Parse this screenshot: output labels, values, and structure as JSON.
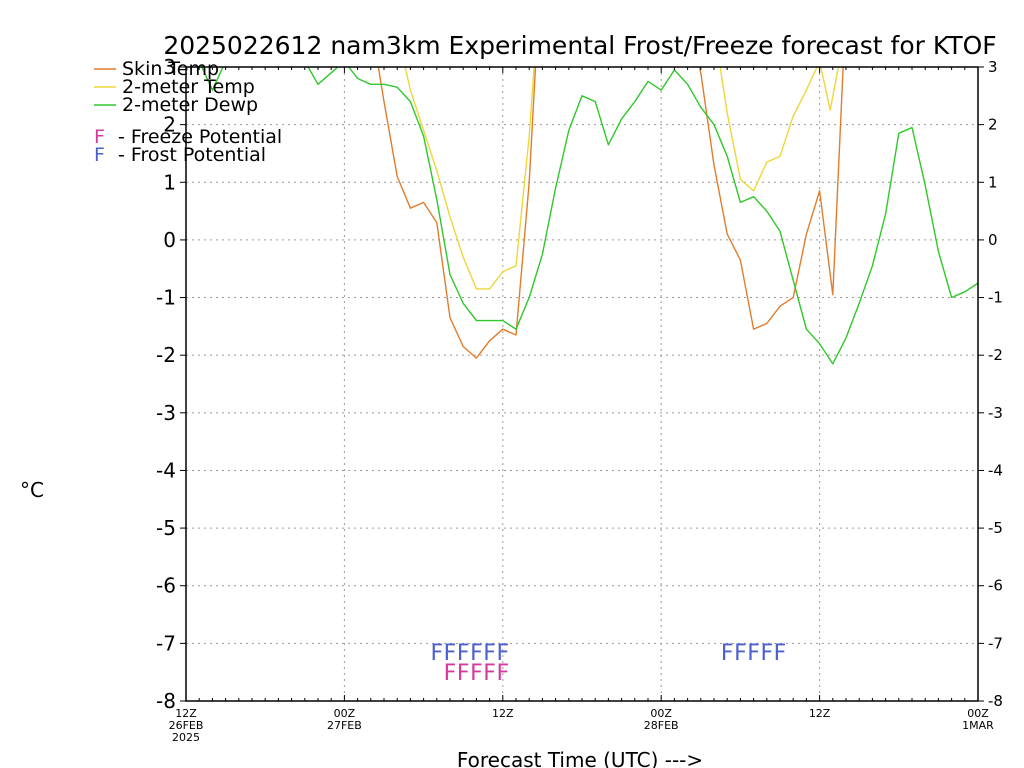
{
  "chart_data": {
    "type": "line",
    "title": "2025022612 nam3km Experimental Frost/Freeze forecast for KTOF",
    "xlabel": "Forecast Time (UTC) --->",
    "ylabel": "°C",
    "ylim": [
      -8,
      3
    ],
    "xlim": [
      0,
      60
    ],
    "x_unit": "forecast hours from 12Z 26FEB2025",
    "grid": true,
    "legend_position": "top-left",
    "y_ticks": [
      "-8",
      "-7",
      "-6",
      "-5",
      "-4",
      "-3",
      "-2",
      "-1",
      "0",
      "1",
      "2",
      "3"
    ],
    "x_ticks": [
      {
        "x": 0,
        "lines": [
          "12Z",
          "26FEB",
          "2025"
        ]
      },
      {
        "x": 12,
        "lines": [
          "00Z",
          "27FEB"
        ]
      },
      {
        "x": 24,
        "lines": [
          "12Z"
        ]
      },
      {
        "x": 36,
        "lines": [
          "00Z",
          "28FEB"
        ]
      },
      {
        "x": 48,
        "lines": [
          "12Z"
        ]
      },
      {
        "x": 60,
        "lines": [
          "00Z",
          "1MAR"
        ]
      }
    ],
    "series": [
      {
        "name": "Skin Temp",
        "color": "#e07d2c",
        "points": [
          [
            14.5,
            3.1
          ],
          [
            15,
            2.4
          ],
          [
            16,
            1.1
          ],
          [
            17,
            0.55
          ],
          [
            18,
            0.65
          ],
          [
            19,
            0.3
          ],
          [
            20,
            -1.35
          ],
          [
            21,
            -1.85
          ],
          [
            22,
            -2.05
          ],
          [
            23,
            -1.75
          ],
          [
            24,
            -1.55
          ],
          [
            25,
            -1.65
          ],
          [
            26,
            1.0
          ],
          [
            26.5,
            3.1
          ],
          [
            38.8,
            3.1
          ],
          [
            39,
            2.9
          ],
          [
            40,
            1.3
          ],
          [
            41,
            0.1
          ],
          [
            42,
            -0.35
          ],
          [
            43,
            -1.55
          ],
          [
            44,
            -1.45
          ],
          [
            45,
            -1.15
          ],
          [
            46,
            -1.0
          ],
          [
            47,
            0.1
          ],
          [
            48,
            0.85
          ],
          [
            49,
            -0.95
          ],
          [
            49.8,
            3.1
          ]
        ]
      },
      {
        "name": "2-meter Temp",
        "color": "#ecd73c",
        "points": [
          [
            16.5,
            3.1
          ],
          [
            17,
            2.6
          ],
          [
            18,
            1.9
          ],
          [
            19,
            1.2
          ],
          [
            20,
            0.4
          ],
          [
            21,
            -0.3
          ],
          [
            22,
            -0.85
          ],
          [
            23,
            -0.85
          ],
          [
            24,
            -0.55
          ],
          [
            25,
            -0.45
          ],
          [
            26,
            1.8
          ],
          [
            26.4,
            3.1
          ],
          [
            40.4,
            3.1
          ],
          [
            41,
            2.2
          ],
          [
            42,
            1.05
          ],
          [
            43,
            0.85
          ],
          [
            44,
            1.35
          ],
          [
            45,
            1.45
          ],
          [
            46,
            2.15
          ],
          [
            47,
            2.6
          ],
          [
            48,
            3.1
          ],
          [
            48.8,
            2.25
          ],
          [
            49.5,
            3.1
          ]
        ]
      },
      {
        "name": "2-meter Dewp",
        "color": "#2fc82a",
        "points": [
          [
            1,
            3.1
          ],
          [
            2,
            2.6
          ],
          [
            3,
            3.1
          ],
          [
            9,
            3.1
          ],
          [
            10,
            2.7
          ],
          [
            11,
            2.9
          ],
          [
            12,
            3.1
          ],
          [
            13,
            2.8
          ],
          [
            14,
            2.7
          ],
          [
            15,
            2.7
          ],
          [
            16,
            2.65
          ],
          [
            17,
            2.4
          ],
          [
            18,
            1.8
          ],
          [
            19,
            0.7
          ],
          [
            20,
            -0.6
          ],
          [
            21,
            -1.1
          ],
          [
            22,
            -1.4
          ],
          [
            23,
            -1.4
          ],
          [
            24,
            -1.4
          ],
          [
            25,
            -1.55
          ],
          [
            26,
            -1.0
          ],
          [
            27,
            -0.25
          ],
          [
            28,
            0.9
          ],
          [
            29,
            1.9
          ],
          [
            30,
            2.5
          ],
          [
            31,
            2.4
          ],
          [
            32,
            1.65
          ],
          [
            33,
            2.1
          ],
          [
            34,
            2.4
          ],
          [
            35,
            2.75
          ],
          [
            36,
            2.6
          ],
          [
            37,
            2.95
          ],
          [
            38,
            2.7
          ],
          [
            39,
            2.3
          ],
          [
            40,
            2.0
          ],
          [
            41,
            1.45
          ],
          [
            42,
            0.65
          ],
          [
            43,
            0.75
          ],
          [
            44,
            0.5
          ],
          [
            45,
            0.15
          ],
          [
            46,
            -0.7
          ],
          [
            47,
            -1.55
          ],
          [
            48,
            -1.8
          ],
          [
            49,
            -2.15
          ],
          [
            50,
            -1.7
          ],
          [
            51,
            -1.1
          ],
          [
            52,
            -0.45
          ],
          [
            53,
            0.45
          ],
          [
            54,
            1.85
          ],
          [
            55,
            1.95
          ],
          [
            56,
            0.95
          ],
          [
            57,
            -0.2
          ],
          [
            58,
            -1.0
          ],
          [
            59,
            -0.9
          ],
          [
            60,
            -0.75
          ]
        ]
      }
    ],
    "legend": [
      {
        "label": "Skin Temp",
        "color": "#e07d2c"
      },
      {
        "label": "2-meter Temp",
        "color": "#ecd73c"
      },
      {
        "label": "2-meter Dewp",
        "color": "#2fc82a"
      }
    ],
    "potential_legend": [
      {
        "marker": "F",
        "label": "- Freeze Potential",
        "color": "#d43a9c"
      },
      {
        "marker": "F",
        "label": "- Frost Potential",
        "color": "#4a5fd0"
      }
    ],
    "potential_markers": [
      {
        "kind": "Frost",
        "color": "#4a5fd0",
        "hours": [
          19,
          20,
          21,
          22,
          23,
          24
        ],
        "y": -7.15
      },
      {
        "kind": "Freeze",
        "color": "#d43a9c",
        "hours": [
          20,
          21,
          22,
          23,
          24
        ],
        "y": -7.5
      },
      {
        "kind": "Frost",
        "color": "#4a5fd0",
        "hours": [
          41,
          42,
          43,
          44,
          45
        ],
        "y": -7.15
      }
    ]
  }
}
